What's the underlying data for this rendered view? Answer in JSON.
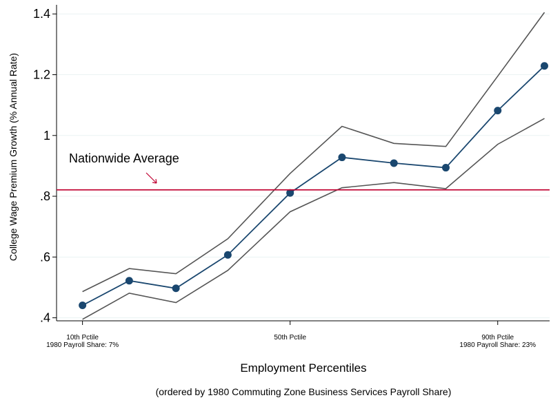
{
  "chart_data": {
    "type": "line",
    "ylabel": "College Wage Premium Growth (% Annual Rate)",
    "xlabel": "Employment Percentiles",
    "subtitle": "(ordered by 1980 Commuting Zone Business Services Payroll Share)",
    "ylim": [
      0.39,
      1.43
    ],
    "xlim": [
      5,
      100
    ],
    "y_ticks": [
      {
        "value": 0.4,
        "label": ".4"
      },
      {
        "value": 0.6,
        "label": ".6"
      },
      {
        "value": 0.8,
        "label": ".8"
      },
      {
        "value": 1.0,
        "label": "1"
      },
      {
        "value": 1.2,
        "label": "1.2"
      },
      {
        "value": 1.4,
        "label": "1.4"
      }
    ],
    "x_ticks": [
      {
        "value": 10,
        "lines": [
          "10th Pctile",
          "1980 Payroll Share: 7%"
        ]
      },
      {
        "value": 50,
        "lines": [
          "50th Pctile"
        ]
      },
      {
        "value": 90,
        "lines": [
          "90th Pctile",
          "1980 Payroll Share: 23%"
        ]
      }
    ],
    "grid": true,
    "x": [
      10,
      19,
      28,
      38,
      50,
      60,
      70,
      80,
      90,
      99
    ],
    "series": [
      {
        "role": "estimate",
        "color": "#1a476f",
        "markers": true,
        "values": [
          0.441,
          0.522,
          0.497,
          0.607,
          0.811,
          0.928,
          0.909,
          0.894,
          1.082,
          1.229
        ]
      },
      {
        "role": "upper",
        "color": "#555555",
        "markers": false,
        "values": [
          0.486,
          0.562,
          0.545,
          0.66,
          0.875,
          1.03,
          0.974,
          0.964,
          1.195,
          1.405
        ]
      },
      {
        "role": "lower",
        "color": "#555555",
        "markers": false,
        "values": [
          0.395,
          0.481,
          0.45,
          0.556,
          0.749,
          0.828,
          0.845,
          0.825,
          0.971,
          1.056
        ]
      }
    ],
    "annotations": [
      {
        "text": "Nationwide Average",
        "type": "hline",
        "value": 0.821,
        "color": "#c10534"
      }
    ]
  }
}
